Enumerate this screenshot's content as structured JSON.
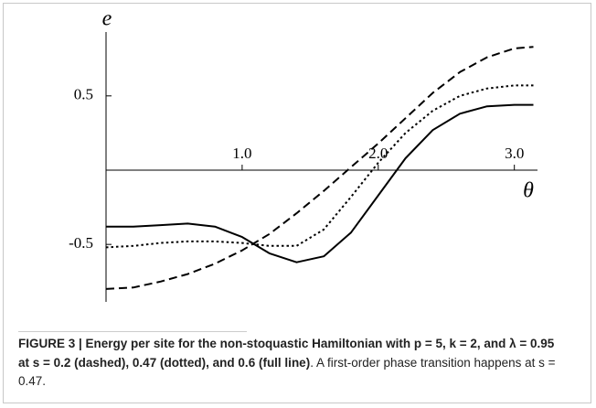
{
  "chart_data": {
    "type": "line",
    "ylabel": "e",
    "xlabel": "θ",
    "x": [
      0,
      0.2,
      0.4,
      0.6,
      0.8,
      1.0,
      1.2,
      1.4,
      1.6,
      1.8,
      2.0,
      2.2,
      2.4,
      2.6,
      2.8,
      3.0,
      3.14
    ],
    "series": [
      {
        "color": "#000000",
        "style": "dashed",
        "values": [
          -0.8,
          -0.79,
          -0.75,
          -0.7,
          -0.63,
          -0.54,
          -0.43,
          -0.29,
          -0.14,
          0.02,
          0.18,
          0.35,
          0.52,
          0.66,
          0.76,
          0.82,
          0.83
        ]
      },
      {
        "color": "#000000",
        "style": "dotted",
        "values": [
          -0.52,
          -0.51,
          -0.49,
          -0.48,
          -0.48,
          -0.49,
          -0.51,
          -0.51,
          -0.4,
          -0.18,
          0.05,
          0.25,
          0.4,
          0.5,
          0.55,
          0.57,
          0.57
        ]
      },
      {
        "color": "#000000",
        "style": "solid",
        "values": [
          -0.38,
          -0.38,
          -0.37,
          -0.36,
          -0.38,
          -0.45,
          -0.56,
          -0.62,
          -0.58,
          -0.42,
          -0.17,
          0.08,
          0.27,
          0.38,
          0.43,
          0.44,
          0.44
        ]
      }
    ],
    "xlim": [
      0,
      3.17
    ],
    "ylim": [
      -0.85,
      0.93
    ],
    "xticks": [
      {
        "value": 1,
        "label": "1.0"
      },
      {
        "value": 2,
        "label": "2.0"
      },
      {
        "value": 3,
        "label": "3.0"
      }
    ],
    "yticks": [
      -0.5,
      0.5
    ],
    "grid": false
  },
  "caption": {
    "bold": "FIGURE 3 | Energy per site for the non-stoquastic Hamiltonian with p = 5, k = 2, and λ = 0.95 at s = 0.2 (dashed), 0.47 (dotted), and 0.6 (full line)",
    "rest": ". A first-order phase transition happens at s = 0.47."
  }
}
